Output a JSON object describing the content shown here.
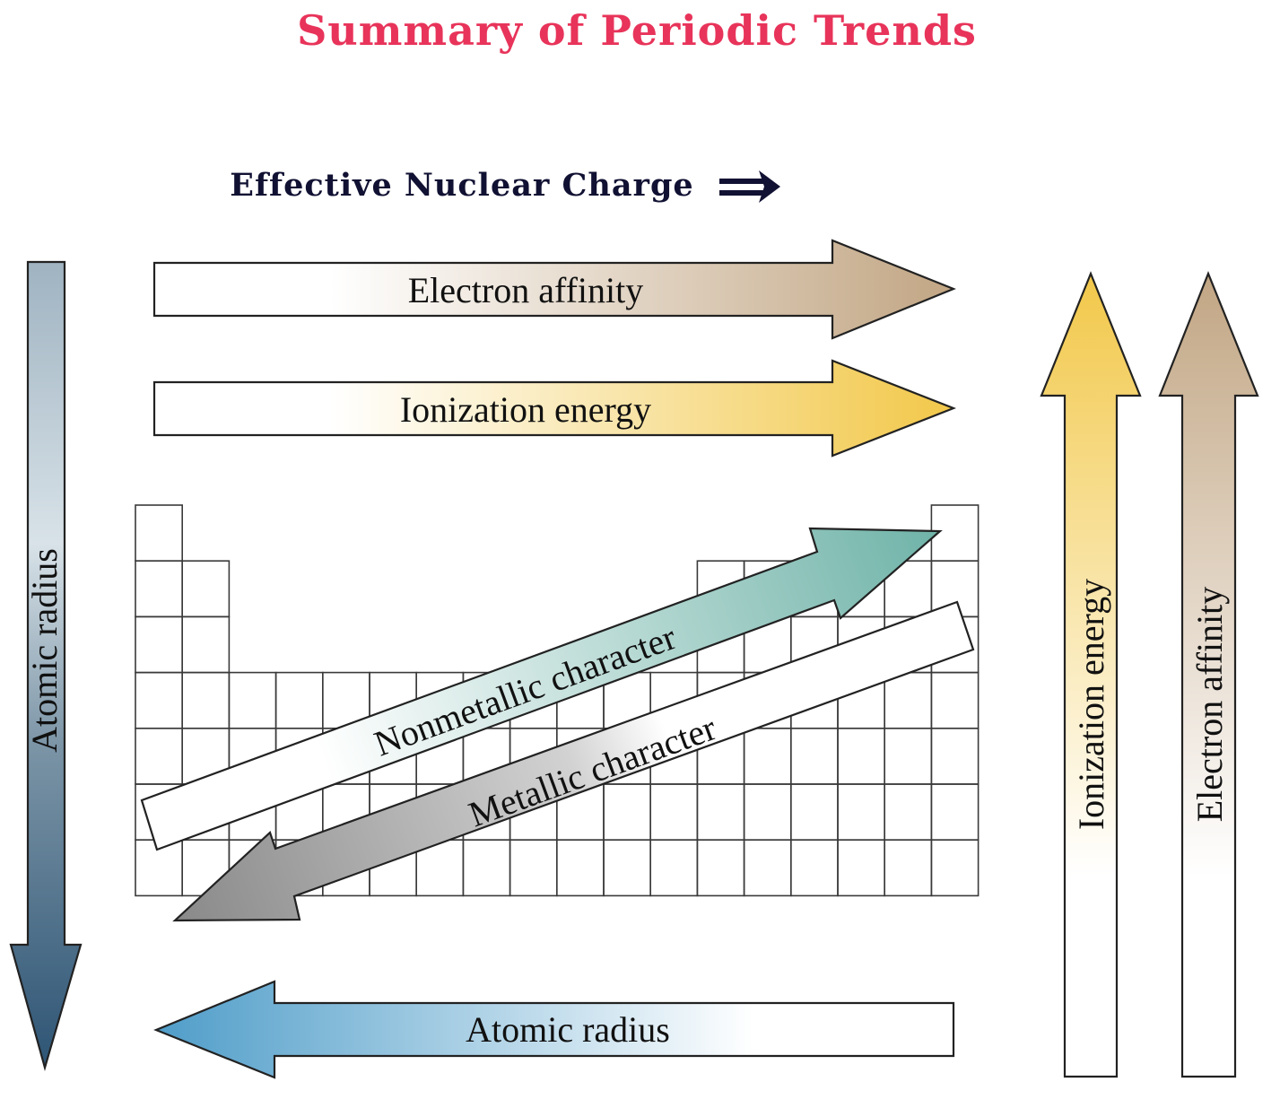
{
  "title": "Summary of Periodic Trends",
  "subtitle": "Effective Nuclear Charge",
  "subtitle_arrow": "⟹",
  "colors": {
    "title": "#e8345a",
    "subtitle": "#111133",
    "electron_affinity": "#c2a684",
    "ionization_energy": "#f2c84a",
    "atomic_radius_horizontal": "#4f9dc9",
    "atomic_radius_vertical": "#2e5575",
    "nonmetallic_character": "#6fb3a8",
    "metallic_character": "#8a8a8a",
    "grid_line": "#3a3a3a"
  },
  "arrows": {
    "electron_affinity_h": {
      "label": "Electron affinity",
      "direction": "right"
    },
    "ionization_energy_h": {
      "label": "Ionization energy",
      "direction": "right"
    },
    "atomic_radius_h": {
      "label": "Atomic radius",
      "direction": "left"
    },
    "atomic_radius_v": {
      "label": "Atomic radius",
      "direction": "down"
    },
    "ionization_energy_v": {
      "label": "Ionization energy",
      "direction": "up"
    },
    "electron_affinity_v": {
      "label": "Electron affinity",
      "direction": "up"
    },
    "nonmetallic_character": {
      "label": "Nonmetallic character",
      "direction": "up-right"
    },
    "metallic_character": {
      "label": "Metallic character",
      "direction": "down-left"
    }
  }
}
